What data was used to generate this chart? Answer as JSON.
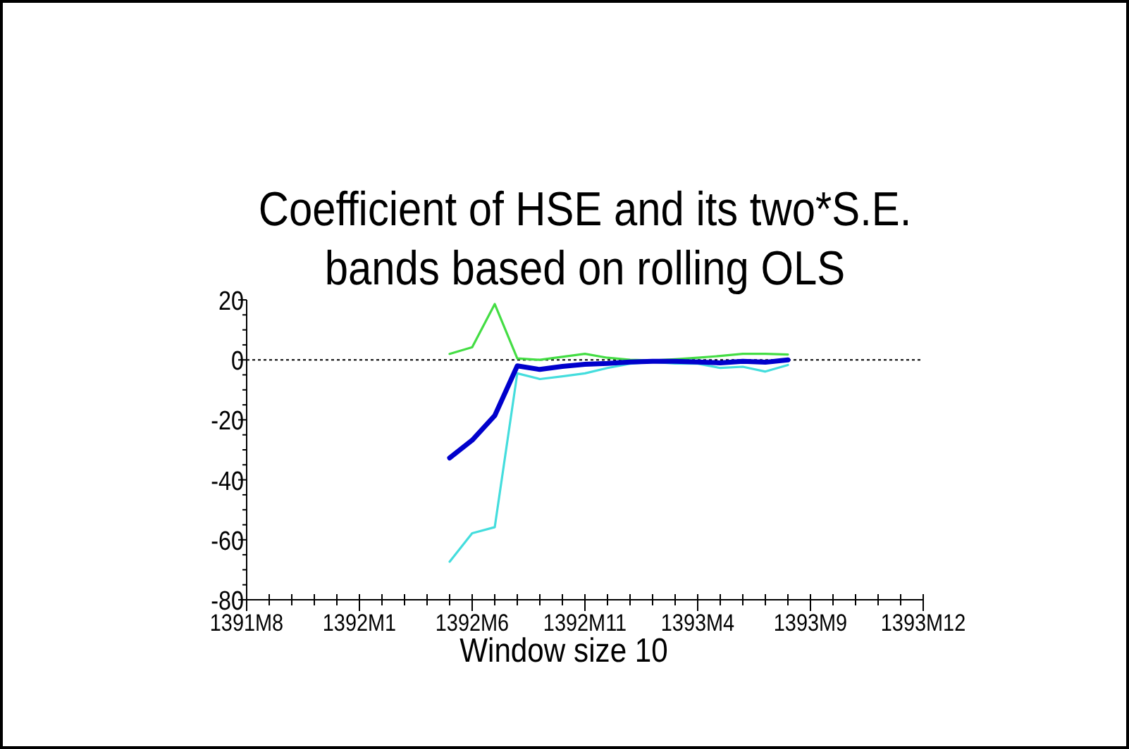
{
  "chart_data": {
    "type": "line",
    "title": "Coefficient of HSE and its two*S.E.\nbands based on rolling OLS",
    "xlabel": "Window size 10",
    "categories": [
      "1391M8",
      null,
      null,
      null,
      null,
      "1392M1",
      null,
      null,
      null,
      null,
      "1392M6",
      null,
      null,
      null,
      null,
      "1392M11",
      null,
      null,
      null,
      null,
      "1393M4",
      null,
      null,
      null,
      null,
      "1393M9",
      null,
      null,
      null,
      null,
      "1393M12"
    ],
    "series": [
      {
        "color": "#44dd44",
        "values": [
          null,
          null,
          null,
          null,
          null,
          null,
          null,
          null,
          null,
          2,
          4.2,
          18.6,
          0.5,
          0,
          1,
          2,
          0.7,
          0,
          -0.2,
          0.2,
          0.7,
          1.3,
          2,
          2,
          1.8,
          null,
          null,
          null,
          null,
          null,
          null
        ]
      },
      {
        "color": "#44dddd",
        "values": [
          null,
          null,
          null,
          null,
          null,
          null,
          null,
          null,
          null,
          -67.3,
          -57.8,
          -55.8,
          -4.5,
          -6.4,
          -5.5,
          -4.5,
          -2.7,
          -1.3,
          -0.7,
          -1.2,
          -1.3,
          -2.7,
          -2.3,
          -3.9,
          -1.7,
          null,
          null,
          null,
          null,
          null,
          null
        ]
      },
      {
        "color": "#0000cc",
        "values": [
          null,
          null,
          null,
          null,
          null,
          null,
          null,
          null,
          null,
          -32.7,
          -26.8,
          -18.6,
          -2,
          -3.2,
          -2.2,
          -1.5,
          -1.2,
          -0.7,
          -0.5,
          -0.5,
          -0.7,
          -1,
          -0.5,
          -0.8,
          0,
          null,
          null,
          null,
          null,
          null,
          null
        ]
      }
    ],
    "ylim": [
      -80,
      20
    ],
    "yticks": [
      -80,
      {
        "value": -75,
        "label": null
      },
      {
        "value": -70,
        "label": null
      },
      {
        "value": -65,
        "label": null
      },
      -60,
      {
        "value": -55,
        "label": null
      },
      {
        "value": -50,
        "label": null
      },
      {
        "value": -45,
        "label": null
      },
      -40,
      {
        "value": -35,
        "label": null
      },
      {
        "value": -30,
        "label": null
      },
      {
        "value": -25,
        "label": null
      },
      -20,
      {
        "value": -15,
        "label": null
      },
      {
        "value": -10,
        "label": null
      },
      {
        "value": -5,
        "label": null
      },
      0,
      {
        "value": 5,
        "label": null
      },
      {
        "value": 10,
        "label": null
      },
      {
        "value": 15,
        "label": null
      },
      20
    ],
    "ref_lines": [
      {
        "axis": "y",
        "value": 0,
        "color": "#000000",
        "line_style": "dotted"
      }
    ],
    "grid": false,
    "marker": "none",
    "line_style": "solid"
  }
}
